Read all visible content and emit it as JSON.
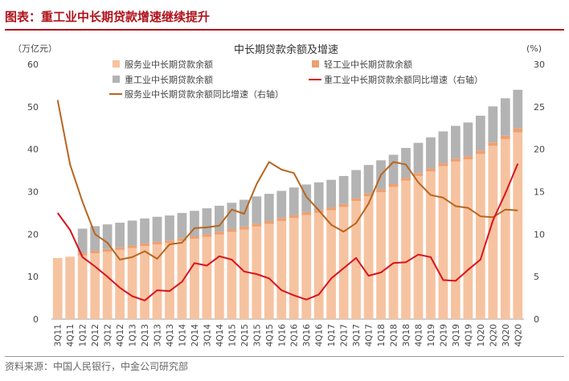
{
  "caption": "图表：重工业中长期贷款增速继续提升",
  "source": "资料来源：中国人民银行，中金公司研究部",
  "chart_data": {
    "type": "bar",
    "title": "中长期贷款余额及增速",
    "y_left_label": "（万亿元）",
    "y_right_label": "(%)",
    "ylim": [
      0,
      60
    ],
    "y2lim": [
      0,
      30
    ],
    "yticks": [
      0,
      10,
      20,
      30,
      40,
      50,
      60
    ],
    "y2ticks": [
      0,
      5,
      10,
      15,
      20,
      25,
      30
    ],
    "categories": [
      "3Q11",
      "4Q11",
      "1Q12",
      "2Q12",
      "3Q12",
      "4Q12",
      "1Q13",
      "2Q13",
      "3Q13",
      "4Q13",
      "1Q14",
      "2Q14",
      "3Q14",
      "4Q14",
      "1Q15",
      "2Q15",
      "3Q15",
      "4Q15",
      "1Q16",
      "2Q16",
      "3Q16",
      "4Q16",
      "1Q17",
      "2Q17",
      "3Q17",
      "4Q17",
      "1Q18",
      "2Q18",
      "3Q18",
      "4Q18",
      "1Q19",
      "2Q19",
      "3Q19",
      "4Q19",
      "1Q20",
      "2Q20",
      "3Q20",
      "4Q20"
    ],
    "xticklabels": [
      "3Q11",
      "4Q11",
      "1Q12",
      "2Q12",
      "3Q12",
      "4Q12",
      "1Q13",
      "2Q13",
      "3Q13",
      "4Q13",
      "1Q14",
      "2Q14",
      "3Q14",
      "4Q14",
      "1Q15",
      "2Q15",
      "3Q15",
      "4Q15",
      "1Q16",
      "2Q16",
      "3Q16",
      "4Q16",
      "1Q17",
      "2Q17",
      "3Q17",
      "4Q17",
      "1Q18",
      "2Q18",
      "3Q18",
      "4Q18",
      "1Q19",
      "2Q19",
      "3Q19",
      "4Q19",
      "1Q20",
      "2Q20",
      "3Q20",
      "4Q20"
    ],
    "legend": [
      "服务业中长期贷款余额",
      "轻工业中长期贷款余额",
      "重工业中长期贷款余额",
      "重工业中长期贷款余额同比增速（右轴）",
      "服务业中长期贷款余额同比增速（右轴）"
    ],
    "colors": {
      "service_bar": "#f6c3a1",
      "light_bar": "#eea071",
      "heavy_bar": "#b3b3b3",
      "heavy_line": "#d9141c",
      "service_line": "#b8651f",
      "axis": "#999999",
      "text": "#444444"
    },
    "series": [
      {
        "name": "服务业中长期贷款余额",
        "type": "bar",
        "axis": "left",
        "values": [
          14.4,
          14.7,
          15.0,
          15.5,
          15.9,
          16.3,
          16.7,
          17.2,
          17.6,
          17.9,
          18.4,
          18.9,
          19.4,
          19.9,
          20.5,
          21.1,
          21.8,
          22.4,
          23.1,
          23.8,
          24.5,
          25.0,
          25.6,
          26.4,
          27.8,
          28.9,
          29.9,
          31.1,
          32.6,
          33.7,
          34.8,
          36.0,
          37.1,
          37.6,
          38.9,
          40.8,
          42.4,
          44.0
        ]
      },
      {
        "name": "轻工业中长期贷款余额",
        "type": "bar",
        "axis": "left",
        "values": [
          0,
          0,
          0.6,
          0.6,
          0.6,
          0.6,
          0.6,
          0.6,
          0.6,
          0.6,
          0.6,
          0.6,
          0.6,
          0.7,
          0.7,
          0.7,
          0.7,
          0.7,
          0.7,
          0.7,
          0.7,
          0.7,
          0.7,
          0.7,
          0.7,
          0.7,
          0.7,
          0.7,
          0.7,
          0.7,
          0.7,
          0.7,
          0.7,
          0.8,
          0.8,
          0.8,
          0.8,
          0.9
        ]
      },
      {
        "name": "重工业中长期贷款余额",
        "type": "bar",
        "axis": "left",
        "values": [
          0,
          0,
          5.7,
          5.8,
          5.8,
          5.8,
          5.9,
          5.9,
          5.9,
          5.9,
          6.0,
          6.0,
          6.1,
          6.1,
          6.2,
          6.3,
          6.4,
          6.4,
          6.4,
          6.5,
          6.5,
          6.5,
          6.5,
          6.6,
          6.6,
          6.7,
          6.8,
          6.9,
          7.0,
          7.1,
          7.3,
          7.5,
          7.7,
          7.9,
          8.2,
          8.5,
          8.8,
          9.1
        ]
      },
      {
        "name": "重工业中长期贷款余额同比增速（右轴）",
        "type": "line",
        "axis": "right",
        "values": [
          12.5,
          10.5,
          7.3,
          6.2,
          5.0,
          3.7,
          2.7,
          2.2,
          3.4,
          3.3,
          4.4,
          6.6,
          6.3,
          7.4,
          7.0,
          5.6,
          5.3,
          4.8,
          3.4,
          2.8,
          2.3,
          2.9,
          4.8,
          6.0,
          7.2,
          5.1,
          5.5,
          6.6,
          6.7,
          7.6,
          7.3,
          4.6,
          4.5,
          5.8,
          7.0,
          11.6,
          14.8,
          18.3
        ]
      },
      {
        "name": "服务业中长期贷款余额同比增速（右轴）",
        "type": "line",
        "axis": "right",
        "values": [
          25.8,
          18.2,
          13.8,
          10.0,
          9.0,
          7.0,
          7.3,
          8.0,
          7.1,
          8.8,
          9.0,
          10.7,
          10.8,
          11.0,
          12.9,
          12.4,
          15.9,
          18.5,
          17.6,
          17.2,
          14.4,
          12.8,
          11.1,
          10.3,
          11.3,
          13.6,
          17.0,
          18.5,
          18.2,
          16.1,
          14.6,
          14.3,
          13.3,
          13.1,
          12.1,
          12.0,
          12.9,
          12.8
        ]
      }
    ]
  }
}
